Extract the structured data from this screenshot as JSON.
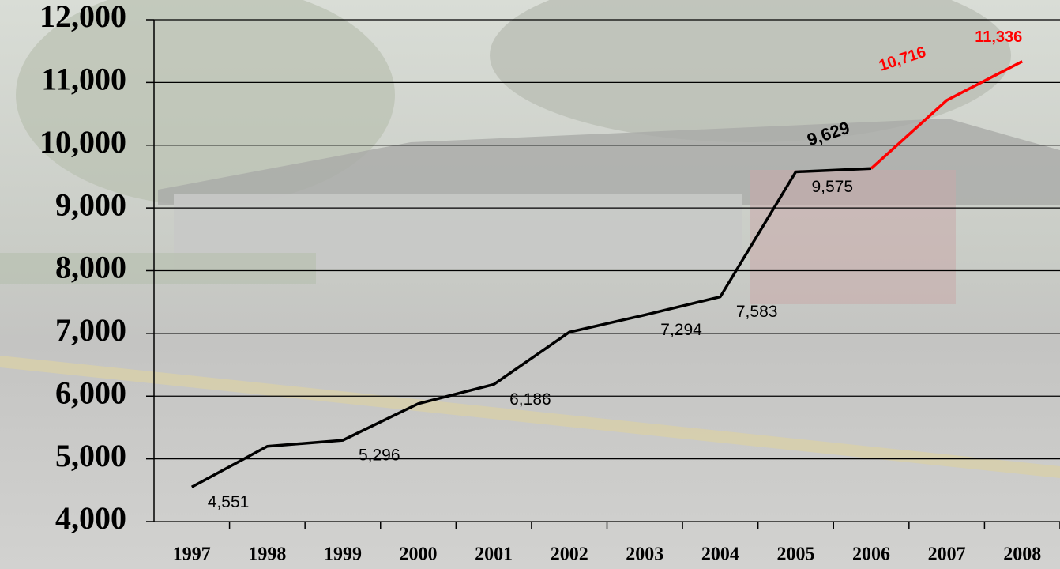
{
  "chart_data": {
    "type": "line",
    "categories": [
      "1997",
      "1998",
      "1999",
      "2000",
      "2001",
      "2002",
      "2003",
      "2004",
      "2005",
      "2006",
      "2007",
      "2008"
    ],
    "series": [
      {
        "color": "#000000",
        "values": [
          4551,
          5200,
          5296,
          5880,
          6186,
          7020,
          7294,
          7583,
          9575,
          9629,
          null,
          null
        ],
        "value_labels": [
          "4,551",
          null,
          "5,296",
          null,
          "6,186",
          null,
          "7,294",
          "7,583",
          "9,575",
          "9,629",
          null,
          null
        ]
      },
      {
        "color": "#ff0000",
        "values": [
          null,
          null,
          null,
          null,
          null,
          null,
          null,
          null,
          null,
          9629,
          10716,
          11336
        ],
        "value_labels": [
          null,
          null,
          null,
          null,
          null,
          null,
          null,
          null,
          null,
          null,
          "10,716",
          "11,336"
        ]
      }
    ],
    "ylim": [
      4000,
      12000
    ],
    "yticks": [
      {
        "value": 4000,
        "label": "4,000"
      },
      {
        "value": 5000,
        "label": "5,000"
      },
      {
        "value": 6000,
        "label": "6,000"
      },
      {
        "value": 7000,
        "label": "7,000"
      },
      {
        "value": 8000,
        "label": "8,000"
      },
      {
        "value": 9000,
        "label": "9,000"
      },
      {
        "value": 10000,
        "label": "10,000"
      },
      {
        "value": 11000,
        "label": "11,000"
      },
      {
        "value": 12000,
        "label": "12,000"
      }
    ],
    "grid": true
  }
}
